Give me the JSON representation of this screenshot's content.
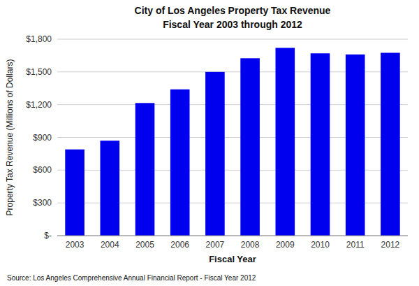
{
  "chart_data": {
    "type": "bar",
    "title": "City of Los Angeles Property Tax Revenue",
    "subtitle": "Fiscal Year 2003 through 2012",
    "x_label": "Fiscal Year",
    "y_label": "Property Tax Revenue (Millions of Dollars)",
    "annotations": [
      "Source: Los Angeles Comprehensive Annual Financial Report - Fiscal Year 2012"
    ],
    "categories": [
      "2003",
      "2004",
      "2005",
      "2006",
      "2007",
      "2008",
      "2009",
      "2010",
      "2011",
      "2012"
    ],
    "values": [
      790,
      870,
      1215,
      1340,
      1500,
      1625,
      1720,
      1670,
      1660,
      1675
    ],
    "color": "#0000EE",
    "ylim": [
      0,
      1800
    ],
    "yticks": [
      {
        "value": 0,
        "label": "$-"
      },
      {
        "value": 300,
        "label": "$300"
      },
      {
        "value": 600,
        "label": "$600"
      },
      {
        "value": 900,
        "label": "$900"
      },
      {
        "value": 1200,
        "label": "$1,200"
      },
      {
        "value": 1500,
        "label": "$1,500"
      },
      {
        "value": 1800,
        "label": "$1,800"
      }
    ],
    "grid": true
  }
}
